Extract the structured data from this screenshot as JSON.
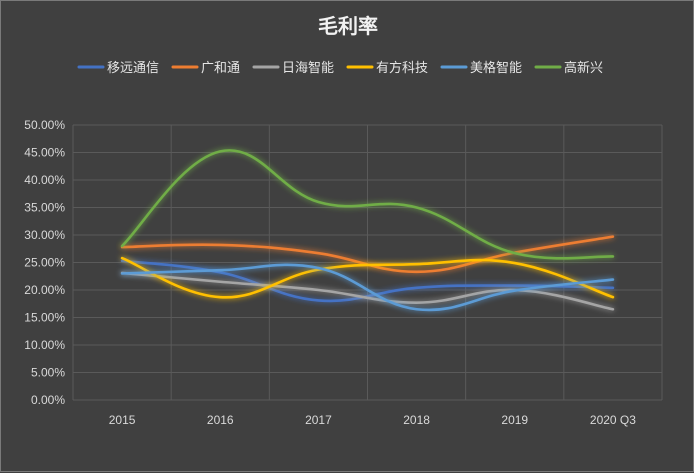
{
  "chart_data": {
    "type": "line",
    "title": "毛利率",
    "categories": [
      "2015",
      "2016",
      "2017",
      "2018",
      "2019",
      "2020 Q3"
    ],
    "ylim": [
      0,
      0.5
    ],
    "yticks": [
      "0.00%",
      "5.00%",
      "10.00%",
      "15.00%",
      "20.00%",
      "25.00%",
      "30.00%",
      "35.00%",
      "40.00%",
      "45.00%",
      "50.00%"
    ],
    "grid": true,
    "legend": "top",
    "series": [
      {
        "name": "移远通信",
        "color": "#4472c4",
        "values": [
          0.253,
          0.232,
          0.181,
          0.204,
          0.208,
          0.204
        ]
      },
      {
        "name": "广和通",
        "color": "#ed7d31",
        "values": [
          0.278,
          0.282,
          0.267,
          0.233,
          0.268,
          0.297
        ]
      },
      {
        "name": "日海智能",
        "color": "#a5a5a5",
        "values": [
          0.231,
          0.215,
          0.2,
          0.177,
          0.2,
          0.165
        ]
      },
      {
        "name": "有方科技",
        "color": "#ffc000",
        "values": [
          0.258,
          0.187,
          0.237,
          0.247,
          0.249,
          0.187
        ]
      },
      {
        "name": "美格智能",
        "color": "#5b9bd5",
        "values": [
          0.23,
          0.236,
          0.24,
          0.165,
          0.199,
          0.219
        ]
      },
      {
        "name": "高新兴",
        "color": "#70ad47",
        "values": [
          0.28,
          0.452,
          0.36,
          0.35,
          0.267,
          0.261
        ]
      }
    ]
  }
}
